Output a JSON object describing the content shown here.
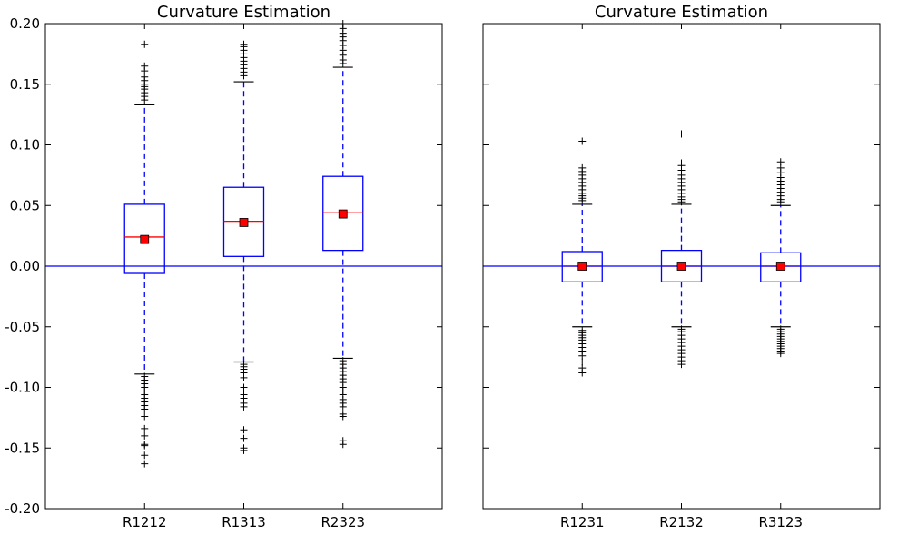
{
  "colors": {
    "box": "#0000ff",
    "median": "#ff0000",
    "mean_marker": "#ff0000",
    "zero_line": "#0000ff",
    "outlier": "#000000",
    "cap": "#000000"
  },
  "chart_data": [
    {
      "type": "box",
      "title": "Curvature Estimation",
      "ylim": [
        -0.2,
        0.2
      ],
      "yticks": [
        "0.20",
        "0.15",
        "0.10",
        "0.05",
        "0.00",
        "-0.05",
        "-0.10",
        "-0.15",
        "-0.20"
      ],
      "ytick_values": [
        0.2,
        0.15,
        0.1,
        0.05,
        0.0,
        -0.05,
        -0.1,
        -0.15,
        -0.2
      ],
      "show_ytick_labels": true,
      "reference_line": 0,
      "categories": [
        "R1212",
        "R1313",
        "R2323"
      ],
      "boxes": [
        {
          "label": "R1212",
          "whisker_low": -0.089,
          "q1": -0.006,
          "median": 0.024,
          "q3": 0.051,
          "whisker_high": 0.133,
          "mean": 0.022,
          "outliers": [
            0.183,
            0.165,
            0.161,
            0.156,
            0.153,
            0.15,
            0.148,
            0.146,
            0.143,
            0.14,
            0.137,
            -0.091,
            -0.094,
            -0.097,
            -0.1,
            -0.103,
            -0.106,
            -0.109,
            -0.112,
            -0.115,
            -0.118,
            -0.124,
            -0.134,
            -0.14,
            -0.147,
            -0.148,
            -0.156,
            -0.163
          ]
        },
        {
          "label": "R1313",
          "whisker_low": -0.079,
          "q1": 0.008,
          "median": 0.037,
          "q3": 0.065,
          "whisker_high": 0.152,
          "mean": 0.036,
          "outliers": [
            0.183,
            0.181,
            0.178,
            0.175,
            0.172,
            0.169,
            0.166,
            0.163,
            0.16,
            0.157,
            -0.081,
            -0.083,
            -0.085,
            -0.088,
            -0.092,
            -0.1,
            -0.103,
            -0.106,
            -0.109,
            -0.113,
            -0.116,
            -0.135,
            -0.142,
            -0.15,
            -0.152
          ]
        },
        {
          "label": "R2323",
          "whisker_low": -0.076,
          "q1": 0.013,
          "median": 0.044,
          "q3": 0.074,
          "whisker_high": 0.164,
          "mean": 0.043,
          "outliers": [
            0.2,
            0.196,
            0.192,
            0.189,
            0.186,
            0.182,
            0.178,
            0.174,
            0.17,
            0.167,
            -0.078,
            -0.081,
            -0.084,
            -0.087,
            -0.09,
            -0.093,
            -0.096,
            -0.1,
            -0.103,
            -0.106,
            -0.11,
            -0.113,
            -0.116,
            -0.122,
            -0.124,
            -0.144,
            -0.147
          ]
        }
      ]
    },
    {
      "type": "box",
      "title": "Curvature Estimation",
      "ylim": [
        -0.2,
        0.2
      ],
      "yticks": [
        "0.20",
        "0.15",
        "0.10",
        "0.05",
        "0.00",
        "-0.05",
        "-0.10",
        "-0.15",
        "-0.20"
      ],
      "ytick_values": [
        0.2,
        0.15,
        0.1,
        0.05,
        0.0,
        -0.05,
        -0.1,
        -0.15,
        -0.2
      ],
      "show_ytick_labels": false,
      "reference_line": 0,
      "categories": [
        "R1231",
        "R2132",
        "R3123"
      ],
      "boxes": [
        {
          "label": "R1231",
          "whisker_low": -0.05,
          "q1": -0.013,
          "median": 0.0,
          "q3": 0.012,
          "whisker_high": 0.051,
          "mean": 0.0,
          "outliers": [
            0.103,
            0.081,
            0.078,
            0.075,
            0.072,
            0.069,
            0.066,
            0.063,
            0.06,
            0.058,
            0.056,
            0.054,
            -0.053,
            -0.055,
            -0.057,
            -0.059,
            -0.061,
            -0.064,
            -0.067,
            -0.07,
            -0.074,
            -0.079,
            -0.084,
            -0.088
          ]
        },
        {
          "label": "R2132",
          "whisker_low": -0.05,
          "q1": -0.013,
          "median": 0.0,
          "q3": 0.013,
          "whisker_high": 0.051,
          "mean": 0.0,
          "outliers": [
            0.109,
            0.085,
            0.083,
            0.079,
            0.075,
            0.072,
            0.069,
            0.066,
            0.063,
            0.06,
            0.057,
            0.055,
            0.053,
            -0.052,
            -0.054,
            -0.057,
            -0.06,
            -0.063,
            -0.066,
            -0.069,
            -0.072,
            -0.075,
            -0.078,
            -0.081
          ]
        },
        {
          "label": "R3123",
          "whisker_low": -0.05,
          "q1": -0.013,
          "median": 0.0,
          "q3": 0.011,
          "whisker_high": 0.05,
          "mean": 0.0,
          "outliers": [
            0.086,
            0.081,
            0.077,
            0.073,
            0.07,
            0.067,
            0.064,
            0.061,
            0.058,
            0.055,
            0.053,
            -0.052,
            -0.054,
            -0.056,
            -0.058,
            -0.06,
            -0.062,
            -0.064,
            -0.066,
            -0.068,
            -0.07,
            -0.072
          ]
        }
      ]
    }
  ]
}
